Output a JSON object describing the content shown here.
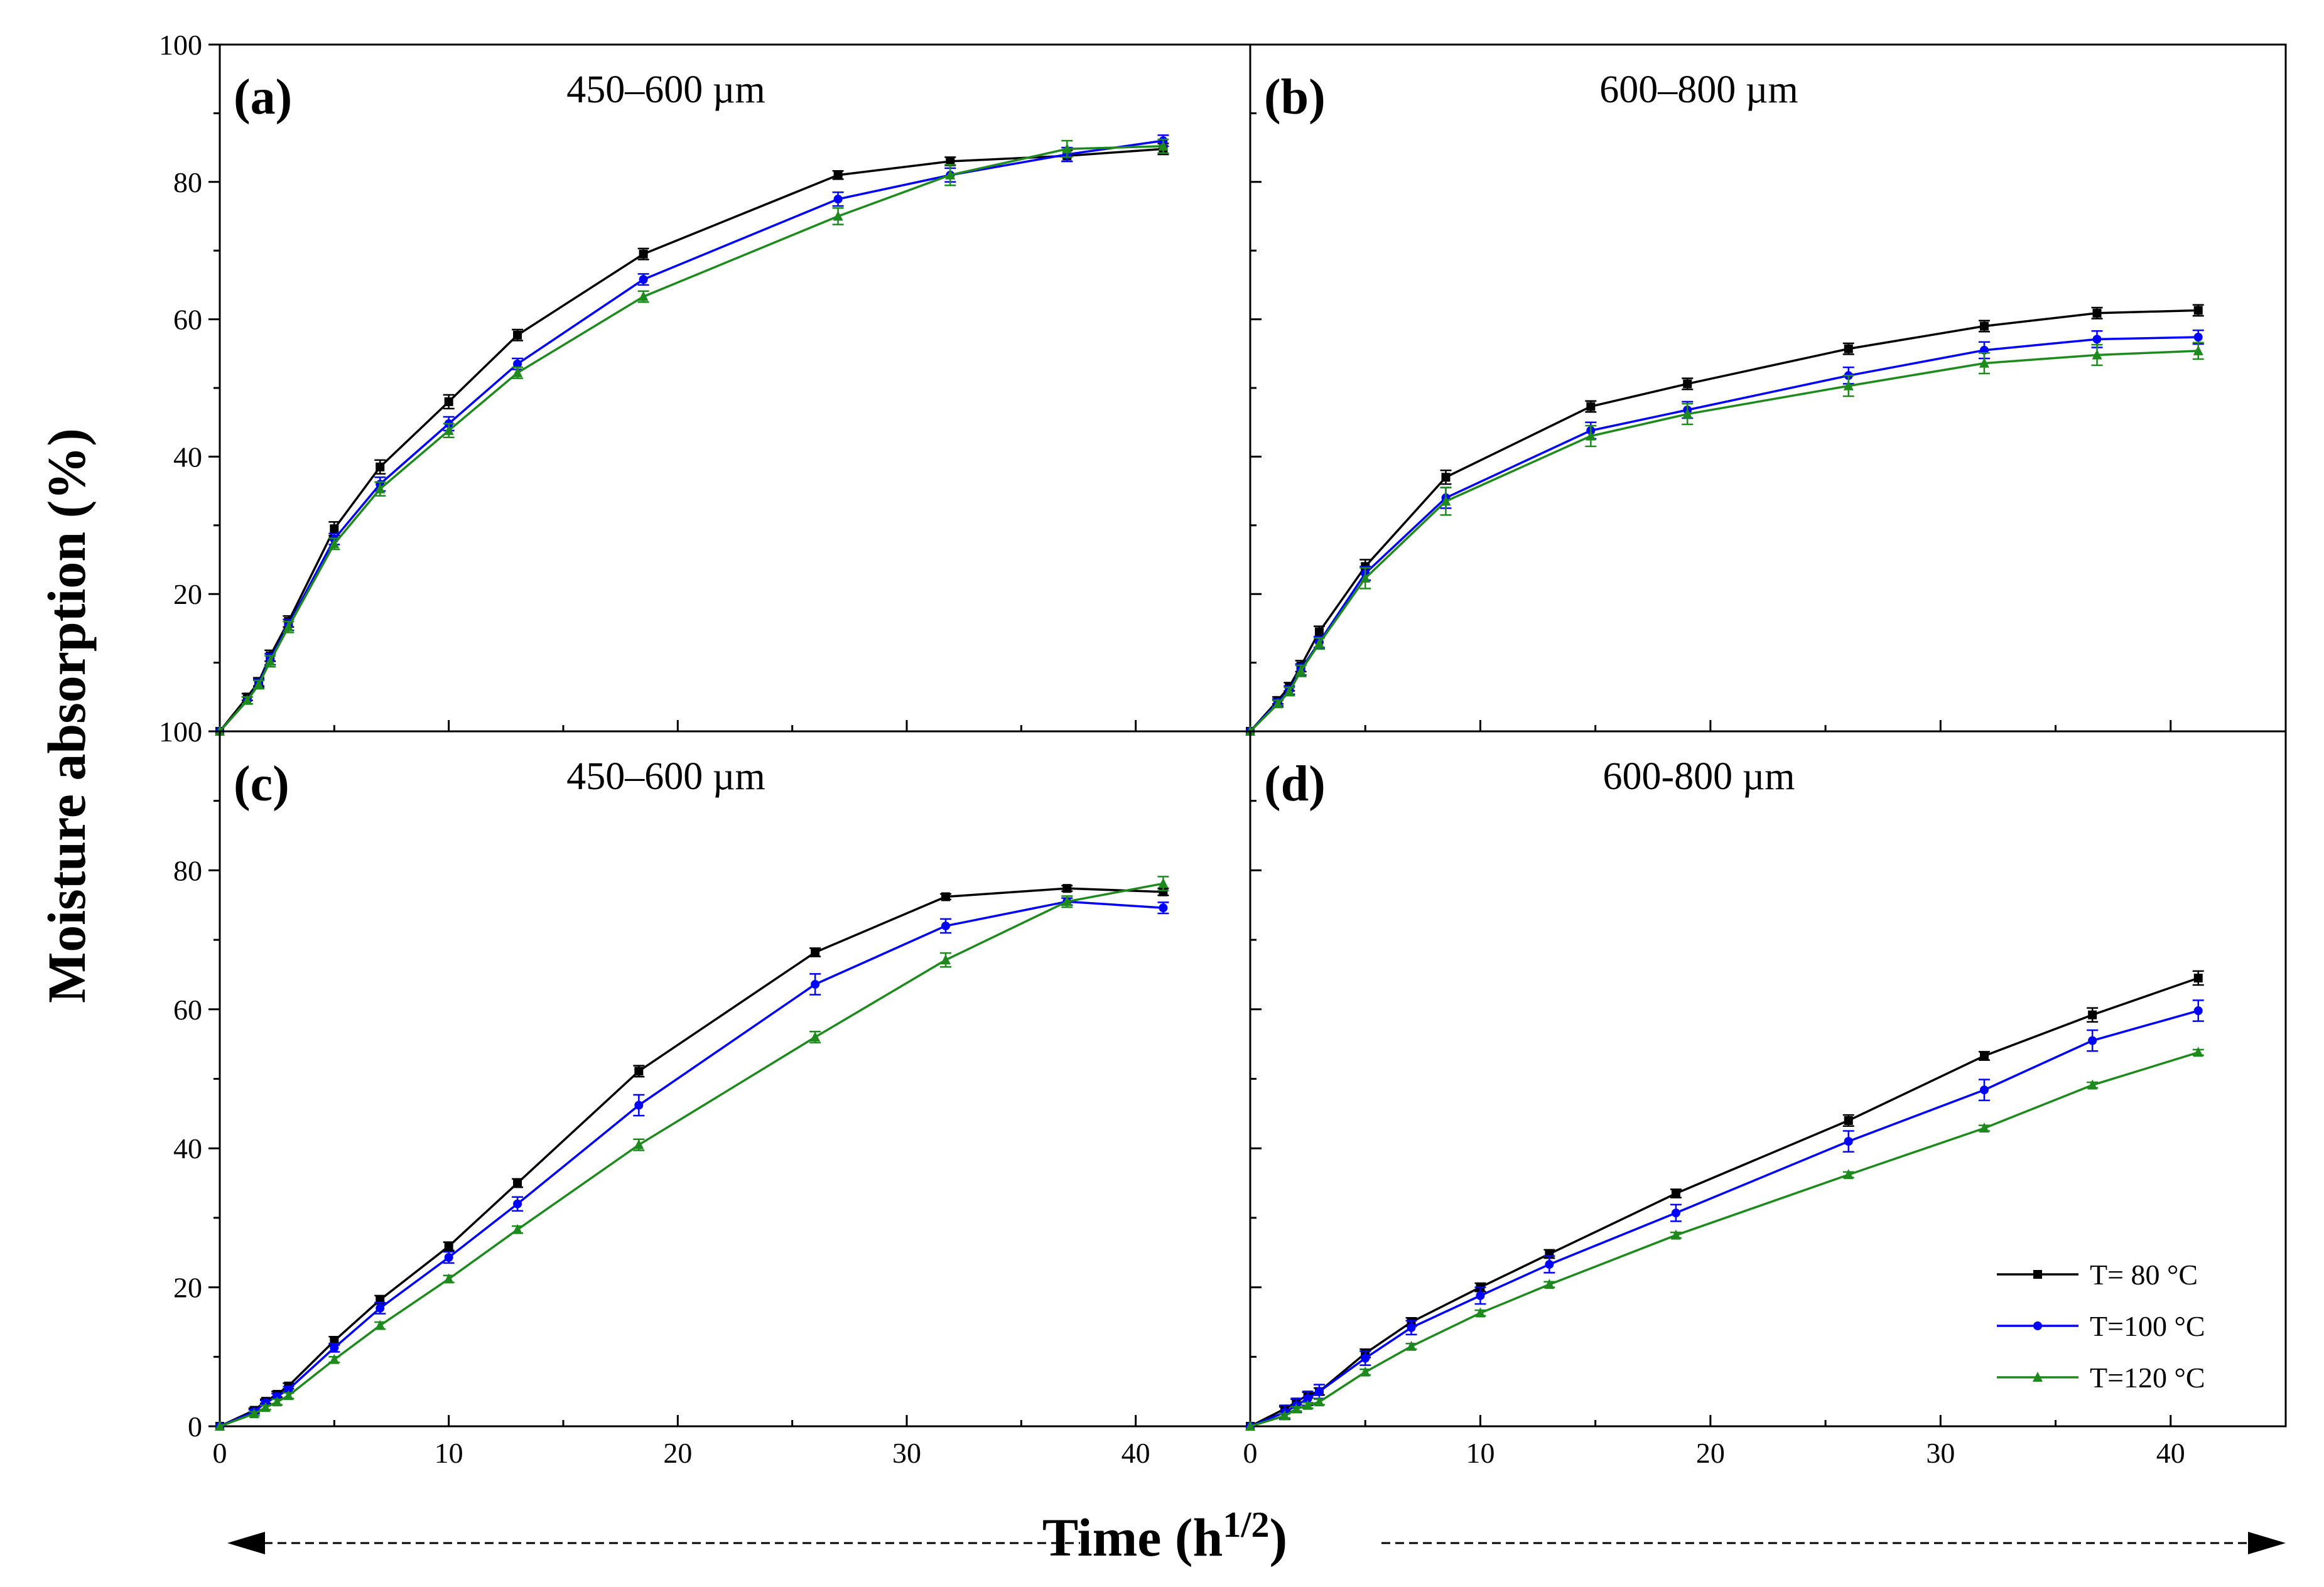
{
  "chart_data": {
    "type": "line",
    "layout": "2x2 panels sharing axes",
    "xlabel": "Time (h",
    "xlabel_superscript": "1/2",
    "xlabel_suffix": ")",
    "ylabel": "Moisture absorption (%)",
    "xlim": [
      0,
      45
    ],
    "ylim": [
      0,
      100
    ],
    "x_ticks": [
      0,
      10,
      20,
      30,
      40
    ],
    "y_ticks": [
      0,
      20,
      40,
      60,
      80,
      100
    ],
    "legend": {
      "location": "bottom-right of panel (d)",
      "entries": [
        "T= 80  °C",
        "T=100 °C",
        "T=120 °C"
      ]
    },
    "series_styles": [
      {
        "name": "T= 80  °C",
        "color": "#000000",
        "marker": "square"
      },
      {
        "name": "T=100 °C",
        "color": "#0000ff",
        "marker": "circle"
      },
      {
        "name": "T=120 °C",
        "color": "#1e8a1e",
        "marker": "triangle"
      }
    ],
    "panels": [
      {
        "label": "(a)",
        "subtitle": "450–600 µm",
        "series": [
          {
            "name": "T= 80  °C",
            "x": [
              0,
              1.2,
              1.7,
              2.2,
              3,
              5,
              7,
              10,
              13,
              18.5,
              27,
              31.9,
              37,
              41.2
            ],
            "y": [
              0,
              5,
              7.2,
              11,
              16,
              29.5,
              38.5,
              48,
              57.7,
              69.5,
              81,
              83,
              83.8,
              84.8
            ],
            "err": [
              0,
              0.5,
              0.6,
              0.8,
              0.8,
              1,
              1,
              1,
              0.8,
              0.8,
              0.6,
              0.6,
              0.8,
              0.8
            ]
          },
          {
            "name": "T=100 °C",
            "x": [
              0,
              1.2,
              1.7,
              2.2,
              3,
              5,
              7,
              10,
              13,
              18.5,
              27,
              31.9,
              37,
              41.2
            ],
            "y": [
              0,
              4.5,
              7,
              10.5,
              15.5,
              28,
              36,
              44.8,
              53.5,
              65.8,
              77.5,
              81,
              84,
              86
            ],
            "err": [
              0,
              0.5,
              0.6,
              0.8,
              0.8,
              0.8,
              1,
              1,
              0.8,
              0.8,
              1,
              1,
              1,
              0.8
            ]
          },
          {
            "name": "T=120 °C",
            "x": [
              0,
              1.2,
              1.7,
              2.2,
              3,
              5,
              7,
              10,
              13,
              18.5,
              27,
              31.9,
              37,
              41.2
            ],
            "y": [
              0,
              4.5,
              6.8,
              10.2,
              15.2,
              27.3,
              35.3,
              43.8,
              52.2,
              63.3,
              75,
              81,
              84.8,
              85.2
            ],
            "err": [
              0,
              0.5,
              0.6,
              0.8,
              0.8,
              0.8,
              1,
              1,
              0.8,
              0.8,
              1.2,
              1.5,
              1.2,
              1
            ]
          }
        ]
      },
      {
        "label": "(b)",
        "subtitle": "600–800 µm",
        "series": [
          {
            "name": "T= 80  °C",
            "x": [
              0,
              1.2,
              1.7,
              2.2,
              3,
              5,
              8.5,
              14.8,
              19,
              26,
              31.9,
              36.8,
              41.2
            ],
            "y": [
              0,
              4.5,
              6.5,
              9.5,
              14.5,
              24,
              37,
              47.3,
              50.6,
              55.7,
              59,
              60.9,
              61.3
            ],
            "err": [
              0,
              0.5,
              0.6,
              0.8,
              0.8,
              1,
              1,
              0.8,
              0.8,
              0.8,
              0.8,
              0.8,
              0.8
            ]
          },
          {
            "name": "T=100 °C",
            "x": [
              0,
              1.2,
              1.7,
              2.2,
              3,
              5,
              8.5,
              14.8,
              19,
              26,
              31.9,
              36.8,
              41.2
            ],
            "y": [
              0,
              4.2,
              6,
              9,
              13,
              23,
              34,
              43.8,
              46.8,
              51.8,
              55.5,
              57.1,
              57.4
            ],
            "err": [
              0,
              0.5,
              0.6,
              0.8,
              0.8,
              1,
              1.5,
              1.2,
              1.2,
              1.2,
              1.2,
              1.2,
              1
            ]
          },
          {
            "name": "T=120 °C",
            "x": [
              0,
              1.2,
              1.7,
              2.2,
              3,
              5,
              8.5,
              14.8,
              19,
              26,
              31.9,
              36.8,
              41.2
            ],
            "y": [
              0,
              4,
              5.8,
              8.8,
              12.8,
              22.3,
              33.5,
              43,
              46.2,
              50.3,
              53.6,
              54.8,
              55.4
            ],
            "err": [
              0,
              0.5,
              0.6,
              0.8,
              0.8,
              1.5,
              2,
              1.5,
              1.5,
              1.5,
              1.5,
              1.5,
              1.2
            ]
          }
        ]
      },
      {
        "label": "(c)",
        "subtitle": "450–600 µm",
        "series": [
          {
            "name": "T= 80  °C",
            "x": [
              0,
              1.5,
              2,
              2.5,
              3,
              5,
              7,
              10,
              13,
              18.3,
              26,
              31.7,
              37,
              41.2
            ],
            "y": [
              0,
              2.3,
              3.6,
              4.6,
              5.8,
              12.3,
              18.2,
              25.9,
              35,
              51.1,
              68.2,
              76.2,
              77.4,
              76.9
            ],
            "err": [
              0,
              0.3,
              0.3,
              0.4,
              0.4,
              0.6,
              0.6,
              0.6,
              0.6,
              0.8,
              0.6,
              0.4,
              0.4,
              0.5
            ]
          },
          {
            "name": "T=100 °C",
            "x": [
              0,
              1.5,
              2,
              2.5,
              3,
              5,
              7,
              10,
              13,
              18.3,
              26,
              31.7,
              37,
              41.2
            ],
            "y": [
              0,
              2.1,
              3.4,
              4.3,
              5.3,
              11.3,
              17,
              24.3,
              32,
              46.2,
              63.6,
              72,
              75.5,
              74.6
            ],
            "err": [
              0,
              0.3,
              0.3,
              0.4,
              0.4,
              0.6,
              0.8,
              0.8,
              1,
              1.5,
              1.5,
              1,
              0.5,
              0.8
            ]
          },
          {
            "name": "T=120 °C",
            "x": [
              0,
              1.5,
              2,
              2.5,
              3,
              5,
              7,
              10,
              13,
              18.3,
              26,
              31.7,
              37,
              41.2
            ],
            "y": [
              0,
              1.8,
              2.7,
              3.5,
              4.4,
              9.6,
              14.5,
              21.2,
              28.3,
              40.5,
              56,
              67.1,
              75.5,
              78.1
            ],
            "err": [
              0,
              0.3,
              0.3,
              0.4,
              0.4,
              0.4,
              0.5,
              0.5,
              0.5,
              0.8,
              0.8,
              1,
              0.8,
              1
            ]
          }
        ]
      },
      {
        "label": "(d)",
        "subtitle": "600-800 µm",
        "series": [
          {
            "name": "T= 80  °C",
            "x": [
              0,
              1.5,
              2,
              2.5,
              3,
              5,
              7,
              10,
              13,
              18.5,
              26,
              31.9,
              36.6,
              41.2
            ],
            "y": [
              0,
              2.5,
              3.5,
              4.5,
              5,
              10.5,
              15,
              20,
              24.8,
              33.5,
              44,
              53.3,
              59.2,
              64.5
            ],
            "err": [
              0,
              0.3,
              0.4,
              0.4,
              0.5,
              0.6,
              0.6,
              0.6,
              0.6,
              0.6,
              0.8,
              0.6,
              1,
              1
            ]
          },
          {
            "name": "T=100 °C",
            "x": [
              0,
              1.5,
              2,
              2.5,
              3,
              5,
              7,
              10,
              13,
              18.5,
              26,
              31.9,
              36.6,
              41.2
            ],
            "y": [
              0,
              2,
              3,
              4,
              5,
              9.8,
              14.2,
              18.8,
              23.3,
              30.7,
              41,
              48.4,
              55.5,
              59.8
            ],
            "err": [
              0,
              1,
              1,
              1,
              1,
              1,
              1,
              1.2,
              1.2,
              1.2,
              1.5,
              1.5,
              1.5,
              1.5
            ]
          },
          {
            "name": "T=120 °C",
            "x": [
              0,
              1.5,
              2,
              2.5,
              3,
              5,
              7,
              10,
              13,
              18.5,
              26,
              31.9,
              36.6,
              41.2
            ],
            "y": [
              0,
              1.5,
              2.5,
              3,
              3.5,
              7.8,
              11.5,
              16.3,
              20.4,
              27.5,
              36.2,
              42.9,
              49.1,
              53.8
            ],
            "err": [
              0,
              0.3,
              0.3,
              0.4,
              0.4,
              0.4,
              0.4,
              0.4,
              0.4,
              0.4,
              0.4,
              0.4,
              0.4,
              0.4
            ]
          }
        ]
      }
    ]
  }
}
